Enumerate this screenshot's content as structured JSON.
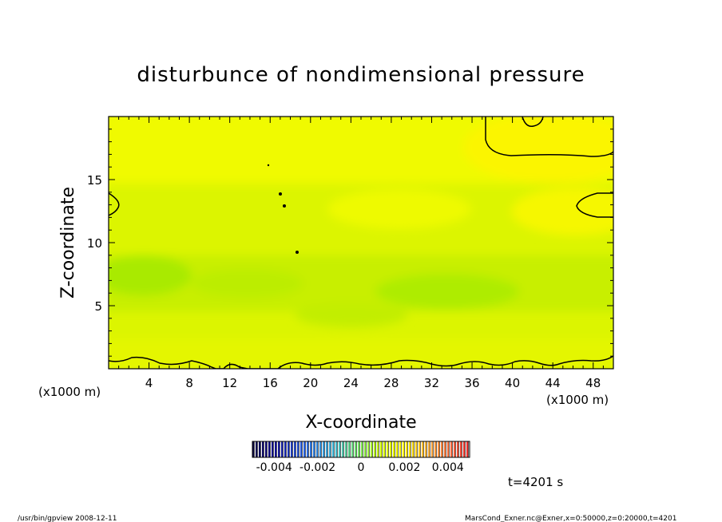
{
  "chart_data": {
    "type": "heatmap",
    "title": "disturbunce of nondimensional pressure",
    "xlabel": "X-coordinate",
    "ylabel": "Z-coordinate",
    "x_unit_left": "(x1000 m)",
    "x_unit_right": "(x1000 m)",
    "x_ticks": [
      4,
      8,
      12,
      16,
      20,
      24,
      28,
      32,
      36,
      40,
      44,
      48
    ],
    "y_ticks": [
      5,
      10,
      15
    ],
    "xlim": [
      0,
      50
    ],
    "ylim": [
      0,
      20
    ],
    "colorbar": {
      "vmin": -0.005,
      "vmax": 0.005,
      "tick_labels": [
        "-0.004",
        "-0.002",
        "0",
        "0.002",
        "0.004"
      ],
      "tick_values": [
        -0.004,
        -0.002,
        0,
        0.002,
        0.004
      ]
    },
    "approx_field_note_values": {
      "upper_region": 0.0028,
      "mid_region": 0.0018,
      "min_band_z_km": 7,
      "min_band_value": 0.0012,
      "near_surface": 0.0024
    },
    "time_label": "t=4201 s"
  },
  "footer": {
    "left": "/usr/bin/gpview   2008-12-11",
    "right": "MarsCond_Exner.nc@Exner,x=0:50000,z=0:20000,t=4201"
  }
}
